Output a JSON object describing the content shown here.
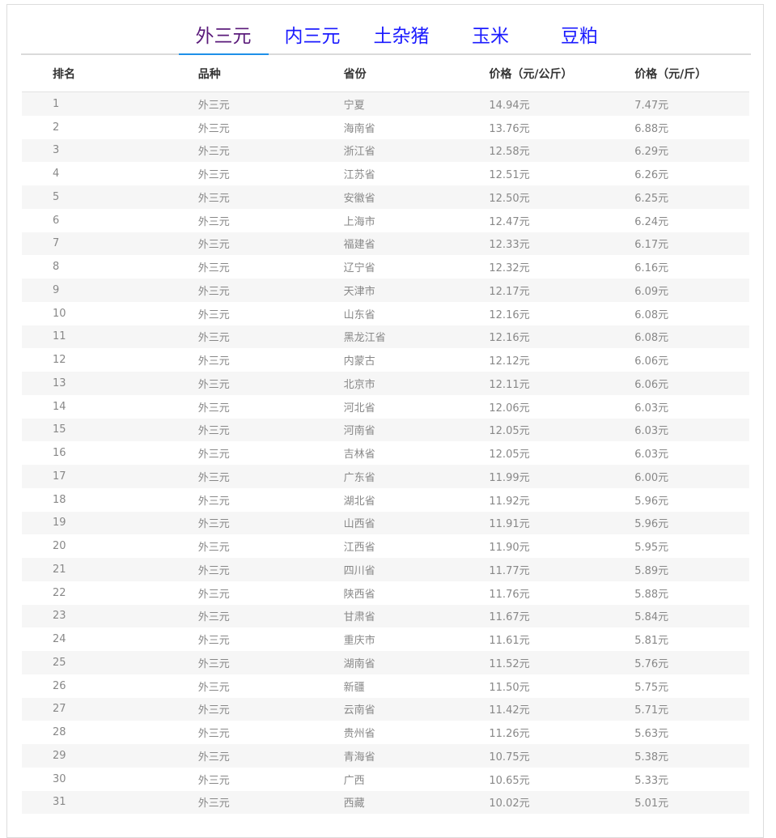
{
  "tabs": [
    {
      "label": "外三元",
      "active": true
    },
    {
      "label": "内三元"
    },
    {
      "label": "土杂猪"
    },
    {
      "label": "玉米"
    },
    {
      "label": "豆粕"
    }
  ],
  "colors": {
    "active_tab_text": "#5a1a7a",
    "tab_text": "#1a1aff",
    "tab_indicator": "#1e90e8"
  },
  "table": {
    "headers": [
      "排名",
      "品种",
      "省份",
      "价格（元/公斤）",
      "价格（元/斤）"
    ],
    "rows": [
      [
        "1",
        "外三元",
        "宁夏",
        "14.94元",
        "7.47元"
      ],
      [
        "2",
        "外三元",
        "海南省",
        "13.76元",
        "6.88元"
      ],
      [
        "3",
        "外三元",
        "浙江省",
        "12.58元",
        "6.29元"
      ],
      [
        "4",
        "外三元",
        "江苏省",
        "12.51元",
        "6.26元"
      ],
      [
        "5",
        "外三元",
        "安徽省",
        "12.50元",
        "6.25元"
      ],
      [
        "6",
        "外三元",
        "上海市",
        "12.47元",
        "6.24元"
      ],
      [
        "7",
        "外三元",
        "福建省",
        "12.33元",
        "6.17元"
      ],
      [
        "8",
        "外三元",
        "辽宁省",
        "12.32元",
        "6.16元"
      ],
      [
        "9",
        "外三元",
        "天津市",
        "12.17元",
        "6.09元"
      ],
      [
        "10",
        "外三元",
        "山东省",
        "12.16元",
        "6.08元"
      ],
      [
        "11",
        "外三元",
        "黑龙江省",
        "12.16元",
        "6.08元"
      ],
      [
        "12",
        "外三元",
        "内蒙古",
        "12.12元",
        "6.06元"
      ],
      [
        "13",
        "外三元",
        "北京市",
        "12.11元",
        "6.06元"
      ],
      [
        "14",
        "外三元",
        "河北省",
        "12.06元",
        "6.03元"
      ],
      [
        "15",
        "外三元",
        "河南省",
        "12.05元",
        "6.03元"
      ],
      [
        "16",
        "外三元",
        "吉林省",
        "12.05元",
        "6.03元"
      ],
      [
        "17",
        "外三元",
        "广东省",
        "11.99元",
        "6.00元"
      ],
      [
        "18",
        "外三元",
        "湖北省",
        "11.92元",
        "5.96元"
      ],
      [
        "19",
        "外三元",
        "山西省",
        "11.91元",
        "5.96元"
      ],
      [
        "20",
        "外三元",
        "江西省",
        "11.90元",
        "5.95元"
      ],
      [
        "21",
        "外三元",
        "四川省",
        "11.77元",
        "5.89元"
      ],
      [
        "22",
        "外三元",
        "陕西省",
        "11.76元",
        "5.88元"
      ],
      [
        "23",
        "外三元",
        "甘肃省",
        "11.67元",
        "5.84元"
      ],
      [
        "24",
        "外三元",
        "重庆市",
        "11.61元",
        "5.81元"
      ],
      [
        "25",
        "外三元",
        "湖南省",
        "11.52元",
        "5.76元"
      ],
      [
        "26",
        "外三元",
        "新疆",
        "11.50元",
        "5.75元"
      ],
      [
        "27",
        "外三元",
        "云南省",
        "11.42元",
        "5.71元"
      ],
      [
        "28",
        "外三元",
        "贵州省",
        "11.26元",
        "5.63元"
      ],
      [
        "29",
        "外三元",
        "青海省",
        "10.75元",
        "5.38元"
      ],
      [
        "30",
        "外三元",
        "广西",
        "10.65元",
        "5.33元"
      ],
      [
        "31",
        "外三元",
        "西藏",
        "10.02元",
        "5.01元"
      ]
    ]
  }
}
